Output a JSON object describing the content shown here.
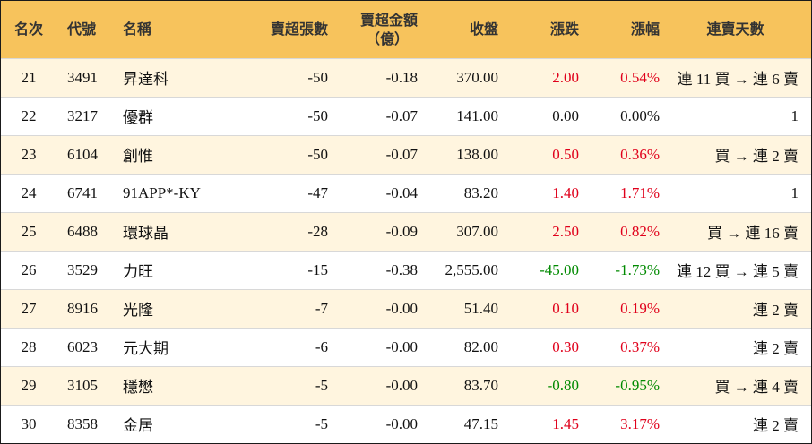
{
  "headers": {
    "rank": "名次",
    "code": "代號",
    "name": "名稱",
    "net_sell_lots": "賣超張數",
    "net_sell_amount": "賣超金額",
    "net_sell_amount_unit": "（億）",
    "close": "收盤",
    "change": "漲跌",
    "change_pct": "漲幅",
    "streak": "連賣天數"
  },
  "colors": {
    "header_bg": "#f7c35c",
    "alt_row_bg": "#fff5df",
    "up": "#e0001b",
    "down": "#008a00"
  },
  "rows": [
    {
      "rank": "21",
      "code": "3491",
      "name": "昇達科",
      "lots": "-50",
      "amount": "-0.18",
      "close": "370.00",
      "change": "2.00",
      "pct": "0.54%",
      "dir": "up",
      "streak": "連 11 買 → 連 6 賣"
    },
    {
      "rank": "22",
      "code": "3217",
      "name": "優群",
      "lots": "-50",
      "amount": "-0.07",
      "close": "141.00",
      "change": "0.00",
      "pct": "0.00%",
      "dir": "flat",
      "streak": "1"
    },
    {
      "rank": "23",
      "code": "6104",
      "name": "創惟",
      "lots": "-50",
      "amount": "-0.07",
      "close": "138.00",
      "change": "0.50",
      "pct": "0.36%",
      "dir": "up",
      "streak": "買 → 連 2 賣"
    },
    {
      "rank": "24",
      "code": "6741",
      "name": "91APP*-KY",
      "lots": "-47",
      "amount": "-0.04",
      "close": "83.20",
      "change": "1.40",
      "pct": "1.71%",
      "dir": "up",
      "streak": "1"
    },
    {
      "rank": "25",
      "code": "6488",
      "name": "環球晶",
      "lots": "-28",
      "amount": "-0.09",
      "close": "307.00",
      "change": "2.50",
      "pct": "0.82%",
      "dir": "up",
      "streak": "買 → 連 16 賣"
    },
    {
      "rank": "26",
      "code": "3529",
      "name": "力旺",
      "lots": "-15",
      "amount": "-0.38",
      "close": "2,555.00",
      "change": "-45.00",
      "pct": "-1.73%",
      "dir": "down",
      "streak": "連 12 買 → 連 5 賣"
    },
    {
      "rank": "27",
      "code": "8916",
      "name": "光隆",
      "lots": "-7",
      "amount": "-0.00",
      "close": "51.40",
      "change": "0.10",
      "pct": "0.19%",
      "dir": "up",
      "streak": "連 2 賣"
    },
    {
      "rank": "28",
      "code": "6023",
      "name": "元大期",
      "lots": "-6",
      "amount": "-0.00",
      "close": "82.00",
      "change": "0.30",
      "pct": "0.37%",
      "dir": "up",
      "streak": "連 2 賣"
    },
    {
      "rank": "29",
      "code": "3105",
      "name": "穩懋",
      "lots": "-5",
      "amount": "-0.00",
      "close": "83.70",
      "change": "-0.80",
      "pct": "-0.95%",
      "dir": "down",
      "streak": "買 → 連 4 賣"
    },
    {
      "rank": "30",
      "code": "8358",
      "name": "金居",
      "lots": "-5",
      "amount": "-0.00",
      "close": "47.15",
      "change": "1.45",
      "pct": "3.17%",
      "dir": "up",
      "streak": "連 2 賣"
    }
  ]
}
